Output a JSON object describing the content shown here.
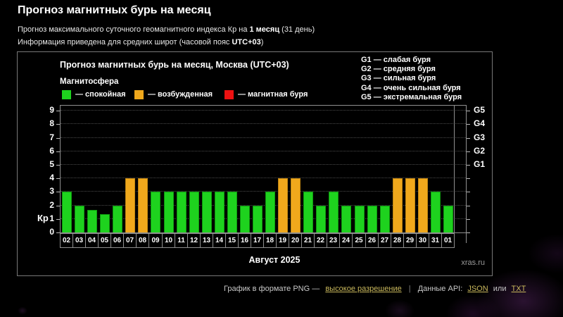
{
  "page": {
    "title": "Прогноз магнитных бурь на месяц",
    "subtitle_prefix": "Прогноз максимального суточного геомагнитного индекса Кр на ",
    "subtitle_bold": "1 месяц",
    "subtitle_suffix": " (31 день)",
    "info_prefix": "Информация приведена для средних широт (часовой пояс ",
    "info_bold": "UTC+03",
    "info_suffix": ")"
  },
  "chart": {
    "title": "Прогноз магнитных бурь на месяц, Москва (UTC+03)",
    "legend_title": "Магнитосфера",
    "legend": [
      {
        "key": "quiet",
        "label": "— спокойная"
      },
      {
        "key": "excited",
        "label": "— возбужденная"
      },
      {
        "key": "storm",
        "label": "— магнитная буря"
      }
    ],
    "g_legend": [
      "G1 — слабая буря",
      "G2 — средняя буря",
      "G3 — сильная буря",
      "G4 — очень сильная буря",
      "G5 — экстремальная буря"
    ],
    "ylabel": "Кр",
    "xlabel": "Август 2025",
    "watermark": "xras.ru"
  },
  "chart_data": {
    "type": "bar",
    "title": "Прогноз магнитных бурь на месяц, Москва (UTC+03)",
    "xlabel": "Август 2025",
    "ylabel": "Кр",
    "ylim": [
      0,
      9
    ],
    "grid": "horizontal-dotted",
    "left_axis_ticks": [
      0,
      1,
      2,
      3,
      4,
      5,
      6,
      7,
      8,
      9
    ],
    "right_axis": {
      "G1": 5,
      "G2": 6,
      "G3": 7,
      "G4": 8,
      "G5": 9
    },
    "categories": [
      "02",
      "03",
      "04",
      "05",
      "06",
      "07",
      "08",
      "09",
      "10",
      "11",
      "12",
      "13",
      "14",
      "15",
      "16",
      "17",
      "18",
      "19",
      "20",
      "21",
      "22",
      "23",
      "24",
      "25",
      "26",
      "27",
      "28",
      "29",
      "30",
      "31",
      "01"
    ],
    "values": [
      3,
      2,
      1.67,
      1.33,
      2,
      4,
      4,
      3,
      3,
      3,
      3,
      3,
      3,
      3,
      2,
      2,
      3,
      4,
      4,
      3,
      2,
      3,
      2,
      2,
      2,
      2,
      4,
      4,
      4,
      3,
      2
    ],
    "statuses": [
      "quiet",
      "quiet",
      "quiet",
      "quiet",
      "quiet",
      "excited",
      "excited",
      "quiet",
      "quiet",
      "quiet",
      "quiet",
      "quiet",
      "quiet",
      "quiet",
      "quiet",
      "quiet",
      "quiet",
      "excited",
      "excited",
      "quiet",
      "quiet",
      "quiet",
      "quiet",
      "quiet",
      "quiet",
      "quiet",
      "excited",
      "excited",
      "excited",
      "quiet",
      "quiet"
    ],
    "colors": {
      "quiet": "#1ed21e",
      "excited": "#f0a81c",
      "storm": "#ee1111"
    },
    "border_colors": {
      "quiet": "#0e9a0e",
      "excited": "#bf8410",
      "storm": "#a50c0c"
    }
  },
  "footer": {
    "text1": "График в формате PNG —",
    "link1": "высокое разрешение",
    "separator": "|",
    "text2": "Данные API:",
    "link2": "JSON",
    "text3": "или",
    "link3": "TXT",
    "link_color": "#c9b85c"
  }
}
